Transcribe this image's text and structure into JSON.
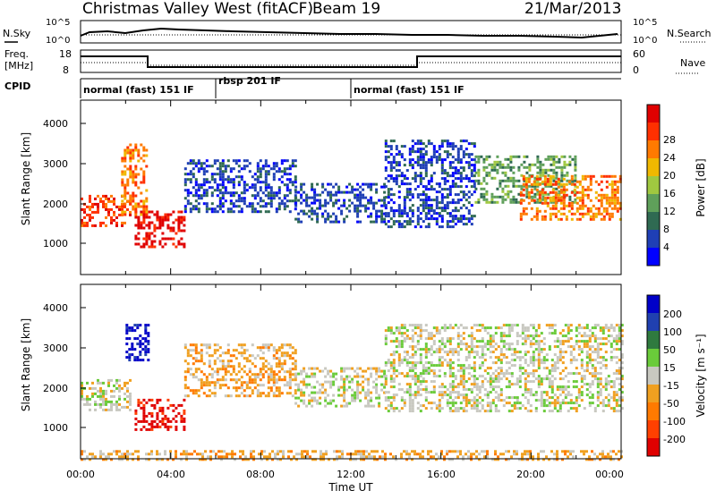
{
  "header": {
    "title": "Christmas Valley West (fitACF)",
    "beam": "Beam 19",
    "date": "21/Mar/2013"
  },
  "top_panels": {
    "nsky_label": "N.Sky",
    "nsky_ticks": [
      "10^5",
      "10^0"
    ],
    "nsearch_label": "N.Search",
    "nsearch_ticks": [
      "10^5",
      "10^0"
    ],
    "freq_label_line1": "Freq.",
    "freq_label_line2": "[MHz]",
    "freq_ticks": [
      "18",
      "8"
    ],
    "nave_label": "Nave",
    "nave_ticks": [
      "60",
      "0"
    ],
    "cpid_label": "CPID",
    "cpid_segments": [
      {
        "label": "normal (fast) 151 IF",
        "start": 0,
        "end": 6
      },
      {
        "label": "rbsp 201 IF",
        "start": 6,
        "end": 12
      },
      {
        "label": "normal (fast) 151 IF",
        "start": 12,
        "end": 24
      }
    ]
  },
  "x_axis": {
    "label": "Time UT",
    "ticks": [
      "00:00",
      "04:00",
      "08:00",
      "12:00",
      "16:00",
      "20:00",
      "00:00"
    ]
  },
  "power_panel": {
    "ylabel": "Slant Range [km]",
    "yticks": [
      "1000",
      "2000",
      "3000",
      "4000"
    ],
    "cbar_label": "Power [dB]",
    "cbar_ticks": [
      "4",
      "8",
      "12",
      "16",
      "20",
      "24",
      "28"
    ],
    "colors": [
      "#0000ff",
      "#1f3fb5",
      "#2f6a52",
      "#5fa05a",
      "#a0c840",
      "#f0b800",
      "#ff7a00",
      "#ff3000",
      "#e00000"
    ]
  },
  "velocity_panel": {
    "ylabel": "Slant Range [km]",
    "yticks": [
      "1000",
      "2000",
      "3000",
      "4000"
    ],
    "cbar_label": "Velocity [m s⁻¹]",
    "cbar_ticks": [
      "200",
      "100",
      "50",
      "15",
      "-15",
      "-50",
      "-100",
      "-200"
    ],
    "colors": [
      "#0000c8",
      "#2040b0",
      "#2f7a3f",
      "#6acb3a",
      "#c8c8c0",
      "#f0a020",
      "#ff7a00",
      "#ff4000",
      "#e00000"
    ]
  },
  "chart_data": {
    "type": "heatmap",
    "x_range_hours": [
      0,
      24
    ],
    "y_range_km": [
      180,
      4600
    ],
    "power_regions": [
      {
        "t0": 0.0,
        "t1": 2.2,
        "r0": 1400,
        "r1": 2200,
        "level": 7
      },
      {
        "t0": 1.8,
        "t1": 2.9,
        "r0": 1700,
        "r1": 3500,
        "level": 6
      },
      {
        "t0": 2.4,
        "t1": 4.6,
        "r0": 900,
        "r1": 1800,
        "level": 8
      },
      {
        "t0": 4.6,
        "t1": 9.5,
        "r0": 1800,
        "r1": 3100,
        "level": 1
      },
      {
        "t0": 9.5,
        "t1": 13.5,
        "r0": 1500,
        "r1": 2500,
        "level": 1
      },
      {
        "t0": 13.5,
        "t1": 17.5,
        "r0": 1400,
        "r1": 3600,
        "level": 1
      },
      {
        "t0": 17.5,
        "t1": 22.0,
        "r0": 2000,
        "r1": 3200,
        "level": 3
      },
      {
        "t0": 19.5,
        "t1": 24.0,
        "r0": 1600,
        "r1": 2700,
        "level": 6
      }
    ],
    "velocity_regions": [
      {
        "t0": 0.0,
        "t1": 2.2,
        "r0": 1400,
        "r1": 2200,
        "level": 4
      },
      {
        "t0": 2.0,
        "t1": 3.0,
        "r0": 2700,
        "r1": 3600,
        "level": 0
      },
      {
        "t0": 2.4,
        "t1": 4.6,
        "r0": 900,
        "r1": 1700,
        "level": 8
      },
      {
        "t0": 4.6,
        "t1": 9.5,
        "r0": 1800,
        "r1": 3100,
        "level": 5
      },
      {
        "t0": 9.5,
        "t1": 13.5,
        "r0": 1500,
        "r1": 2500,
        "level": 4
      },
      {
        "t0": 13.5,
        "t1": 24.0,
        "r0": 1400,
        "r1": 3600,
        "level": 4
      },
      {
        "t0": 0.0,
        "t1": 24.0,
        "r0": 180,
        "r1": 400,
        "level": 5
      }
    ]
  }
}
